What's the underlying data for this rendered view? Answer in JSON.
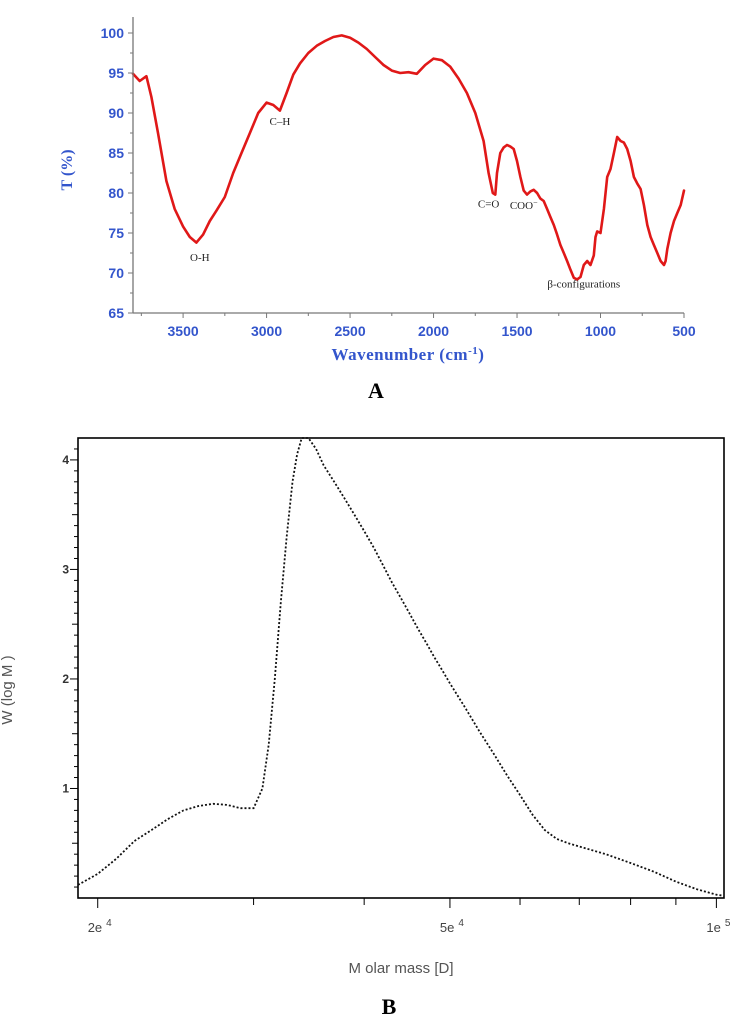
{
  "chart_data": [
    {
      "type": "line",
      "panel_label": "A",
      "xlabel_main": "Wavenumber (cm",
      "xlabel_sup": "-1",
      "xlabel_end": ")",
      "ylabel": "T (%)",
      "xlim": [
        3800,
        500
      ],
      "ylim": [
        65,
        102
      ],
      "x_ticks": [
        3500,
        3000,
        2500,
        2000,
        1500,
        1000,
        500
      ],
      "y_ticks": [
        65,
        70,
        75,
        80,
        85,
        90,
        95,
        100
      ],
      "x_reversed": true,
      "line_color": "#e01818",
      "axis_color": "#777777",
      "tick_color": "#3355cc",
      "series": [
        {
          "x": [
            3800,
            3760,
            3720,
            3690,
            3650,
            3600,
            3550,
            3500,
            3460,
            3420,
            3380,
            3340,
            3300,
            3250,
            3200,
            3150,
            3100,
            3050,
            3000,
            2960,
            2920,
            2880,
            2840,
            2800,
            2750,
            2700,
            2650,
            2600,
            2550,
            2500,
            2450,
            2400,
            2350,
            2300,
            2250,
            2200,
            2150,
            2100,
            2050,
            2000,
            1950,
            1900,
            1850,
            1800,
            1750,
            1700,
            1670,
            1645,
            1630,
            1620,
            1600,
            1580,
            1560,
            1540,
            1520,
            1500,
            1480,
            1460,
            1440,
            1420,
            1400,
            1380,
            1360,
            1340,
            1320,
            1300,
            1280,
            1260,
            1240,
            1220,
            1200,
            1180,
            1160,
            1140,
            1120,
            1100,
            1080,
            1060,
            1040,
            1030,
            1020,
            1000,
            980,
            960,
            940,
            920,
            900,
            880,
            860,
            840,
            820,
            800,
            780,
            760,
            740,
            720,
            700,
            680,
            660,
            640,
            620,
            610,
            600,
            580,
            560,
            540,
            520,
            500
          ],
          "y": [
            94.9,
            94.0,
            94.6,
            92.0,
            87.5,
            81.5,
            78.0,
            75.8,
            74.5,
            73.8,
            74.8,
            76.5,
            77.8,
            79.5,
            82.5,
            85.0,
            87.5,
            90.0,
            91.3,
            91.0,
            90.3,
            92.5,
            94.8,
            96.2,
            97.5,
            98.4,
            99.0,
            99.5,
            99.7,
            99.4,
            98.8,
            98.0,
            97.0,
            96.0,
            95.3,
            95.0,
            95.1,
            94.9,
            96.0,
            96.8,
            96.6,
            95.8,
            94.3,
            92.5,
            90.0,
            86.5,
            82.5,
            80.0,
            79.8,
            82.5,
            85.0,
            85.7,
            86.0,
            85.8,
            85.5,
            84.0,
            82.0,
            80.3,
            79.8,
            80.2,
            80.4,
            80.0,
            79.3,
            79.0,
            78.0,
            77.0,
            76.0,
            74.8,
            73.5,
            72.5,
            71.5,
            70.4,
            69.4,
            69.2,
            69.5,
            71.0,
            71.5,
            71.0,
            72.2,
            74.5,
            75.2,
            75.0,
            78.0,
            82.0,
            83.0,
            85.0,
            87.0,
            86.5,
            86.3,
            85.5,
            84.0,
            82.0,
            81.2,
            80.5,
            78.5,
            76.0,
            74.5,
            73.5,
            72.5,
            71.5,
            71.0,
            71.5,
            73.0,
            75.0,
            76.5,
            77.5,
            78.5,
            80.3
          ]
        }
      ],
      "annotations": [
        {
          "text": "O-H",
          "x": 3400,
          "y": 71.5
        },
        {
          "text": "C–H",
          "x": 2920,
          "y": 88.5
        },
        {
          "text": "C=O",
          "x": 1670,
          "y": 78.2
        },
        {
          "text": "COO",
          "x": 1460,
          "y": 78.0,
          "sup": "−"
        },
        {
          "text": "β-configurations",
          "x": 1100,
          "y": 68.2
        }
      ]
    },
    {
      "type": "line",
      "panel_label": "B",
      "xlabel": "M olar mass [D]",
      "ylabel": "W (log M )",
      "x_scale": "log",
      "xlim": [
        19000,
        102000
      ],
      "ylim": [
        0,
        4.2
      ],
      "x_tick_labels": [
        {
          "value": 20000,
          "mantissa": "2e",
          "exp": "4"
        },
        {
          "value": 50000,
          "mantissa": "5e",
          "exp": "4"
        },
        {
          "value": 100000,
          "mantissa": "1e",
          "exp": "5"
        }
      ],
      "y_tick_labels": [
        1,
        2,
        3,
        4
      ],
      "line_style": "dotted",
      "line_color": "#111111",
      "series": [
        {
          "x": [
            19000,
            20000,
            21000,
            22000,
            23000,
            24000,
            25000,
            26000,
            27000,
            28000,
            29000,
            30000,
            30700,
            31200,
            31700,
            32200,
            32700,
            33200,
            33600,
            34000,
            34600,
            35300,
            36000,
            37000,
            38000,
            39000,
            40000,
            41000,
            42000,
            43000,
            44000,
            45000,
            46000,
            47000,
            48000,
            49000,
            50000,
            52000,
            54000,
            56000,
            58000,
            60000,
            62000,
            64000,
            66000,
            68000,
            70000,
            75000,
            80000,
            85000,
            90000,
            95000,
            100000,
            102000
          ],
          "y": [
            0.12,
            0.22,
            0.36,
            0.52,
            0.62,
            0.72,
            0.8,
            0.84,
            0.86,
            0.85,
            0.82,
            0.82,
            1.0,
            1.4,
            2.0,
            2.7,
            3.3,
            3.8,
            4.05,
            4.2,
            4.2,
            4.1,
            3.95,
            3.8,
            3.65,
            3.5,
            3.35,
            3.2,
            3.04,
            2.88,
            2.74,
            2.6,
            2.46,
            2.33,
            2.2,
            2.08,
            1.96,
            1.74,
            1.52,
            1.32,
            1.12,
            0.94,
            0.76,
            0.62,
            0.54,
            0.5,
            0.47,
            0.4,
            0.32,
            0.24,
            0.15,
            0.08,
            0.03,
            0.02
          ]
        }
      ]
    }
  ]
}
